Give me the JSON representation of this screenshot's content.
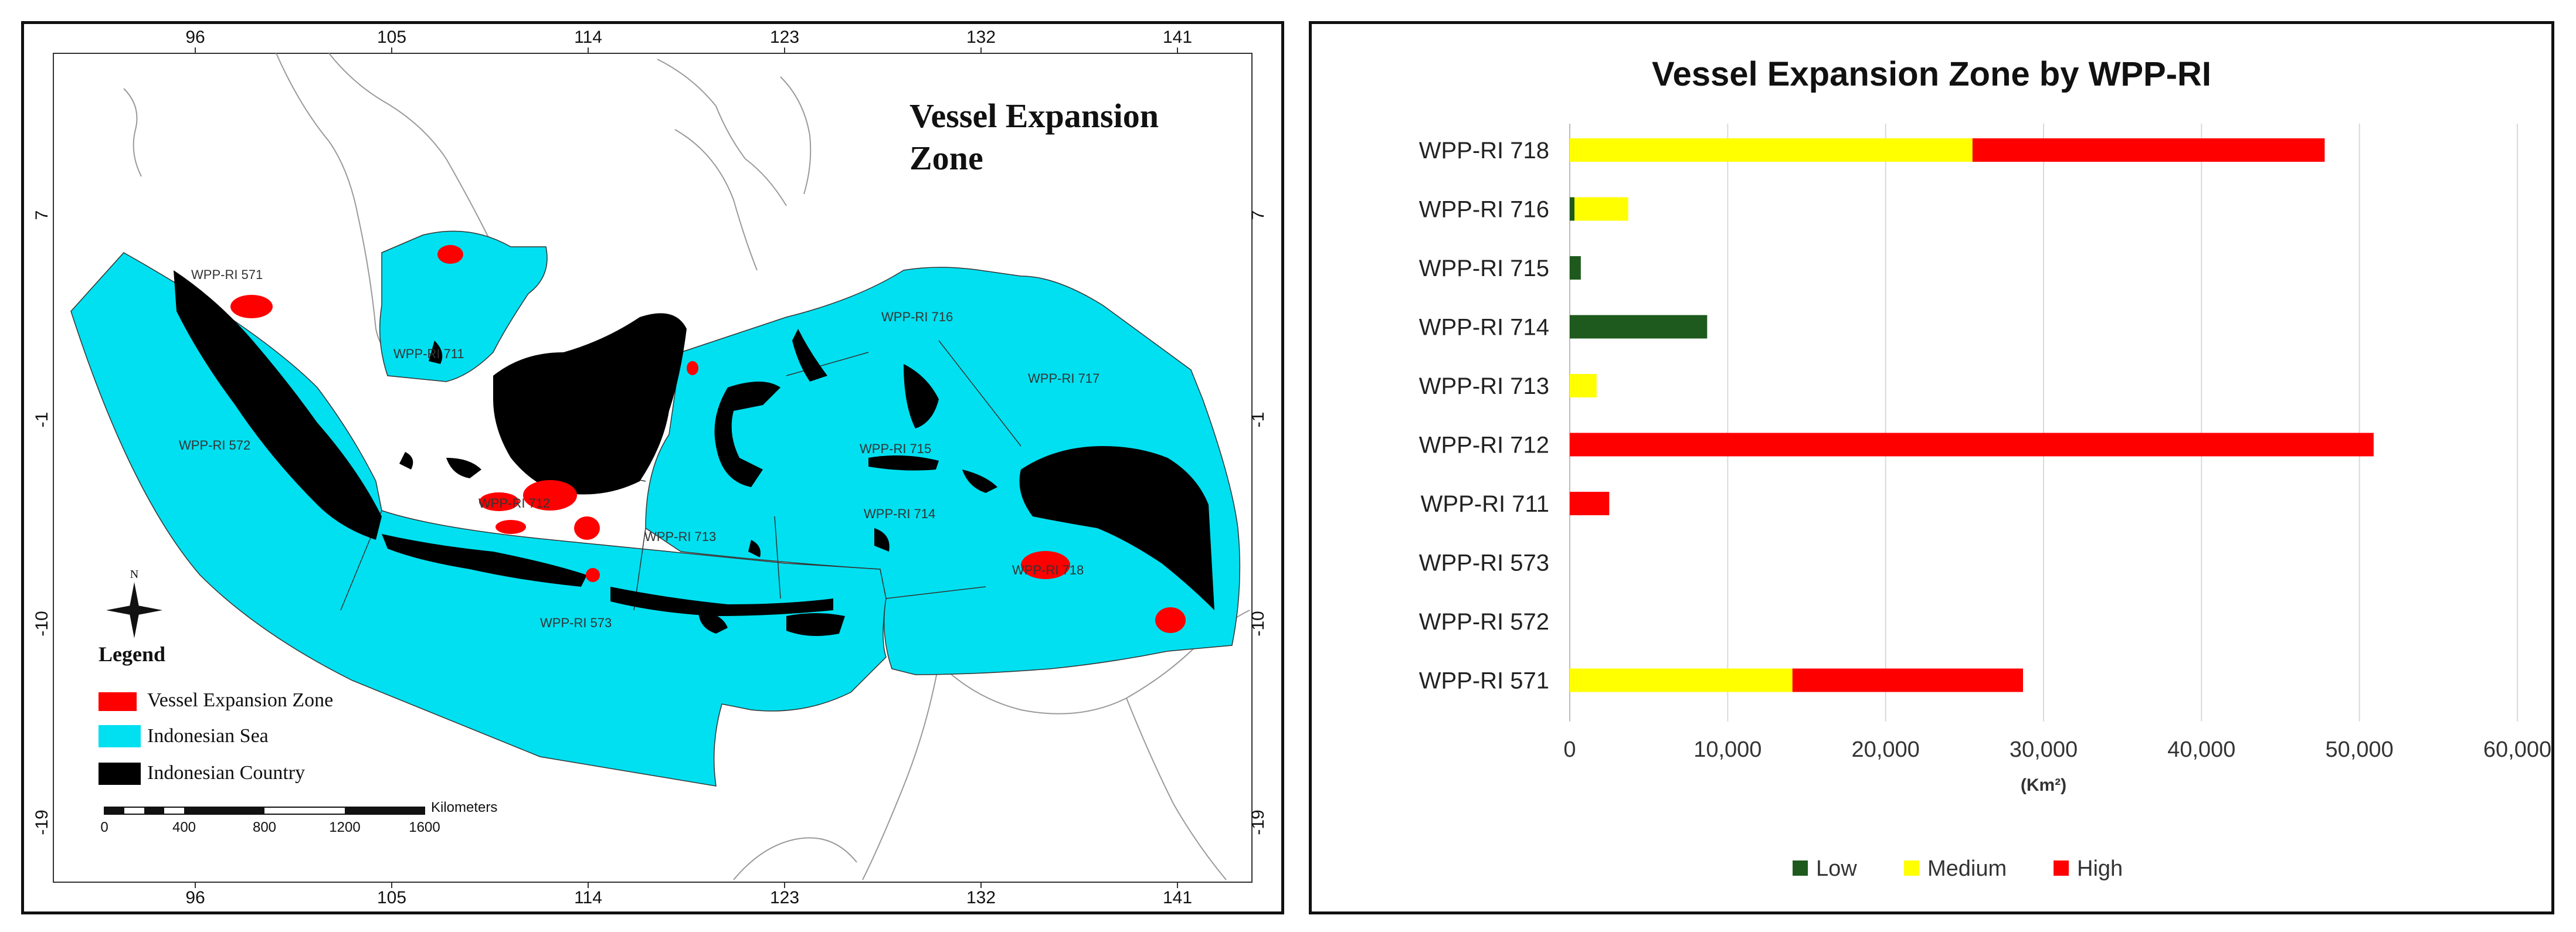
{
  "map": {
    "title_line1": "Vessel Expansion",
    "title_line2": "Zone",
    "lon_ticks": [
      "96",
      "105",
      "114",
      "123",
      "132",
      "141"
    ],
    "lat_ticks": [
      "7",
      "-1",
      "-10",
      "-19"
    ],
    "north_label": "N",
    "legend": {
      "title": "Legend",
      "items": [
        {
          "label": "Vessel Expansion Zone",
          "color": "#ff0000"
        },
        {
          "label": "Indonesian Sea",
          "color": "#00e0f0"
        },
        {
          "label": "Indonesian Country",
          "color": "#000000"
        }
      ]
    },
    "scale_bar": {
      "unit": "Kilometers",
      "ticks": [
        "0",
        "400",
        "800",
        "1200",
        "1600"
      ]
    },
    "zone_labels": [
      "WPP-RI 571",
      "WPP-RI 711",
      "WPP-RI 716",
      "WPP-RI 717",
      "WPP-RI 572",
      "WPP-RI 715",
      "WPP-RI 712",
      "WPP-RI 713",
      "WPP-RI 714",
      "WPP-RI 718",
      "WPP-RI 573"
    ],
    "colors": {
      "sea": "#00e0f0",
      "land": "#000000",
      "zone": "#ff0000",
      "coast": "#9a9a9a"
    }
  },
  "chart_data": {
    "type": "bar",
    "orientation": "horizontal",
    "stacked": true,
    "title": "Vessel Expansion Zone by WPP-RI",
    "xlabel": "(Km²)",
    "ylabel": "",
    "xlim": [
      0,
      60000
    ],
    "x_ticks": [
      0,
      10000,
      20000,
      30000,
      40000,
      50000,
      60000
    ],
    "x_tick_labels": [
      "0",
      "10,000",
      "20,000",
      "30,000",
      "40,000",
      "50,000",
      "60,000"
    ],
    "grid": "vertical",
    "legend_position": "bottom",
    "categories": [
      "WPP-RI 718",
      "WPP-RI 716",
      "WPP-RI 715",
      "WPP-RI 714",
      "WPP-RI 713",
      "WPP-RI 712",
      "WPP-RI 711",
      "WPP-RI 573",
      "WPP-RI 572",
      "WPP-RI 571"
    ],
    "series": [
      {
        "name": "Low",
        "color": "#1e5a1e",
        "values": [
          0,
          300,
          700,
          8700,
          0,
          0,
          0,
          0,
          0,
          0
        ]
      },
      {
        "name": "Medium",
        "color": "#ffff00",
        "values": [
          25500,
          3400,
          0,
          0,
          1700,
          0,
          0,
          0,
          0,
          14100
        ]
      },
      {
        "name": "High",
        "color": "#ff0000",
        "values": [
          22300,
          0,
          0,
          0,
          0,
          50900,
          2500,
          0,
          0,
          14600
        ]
      }
    ]
  }
}
